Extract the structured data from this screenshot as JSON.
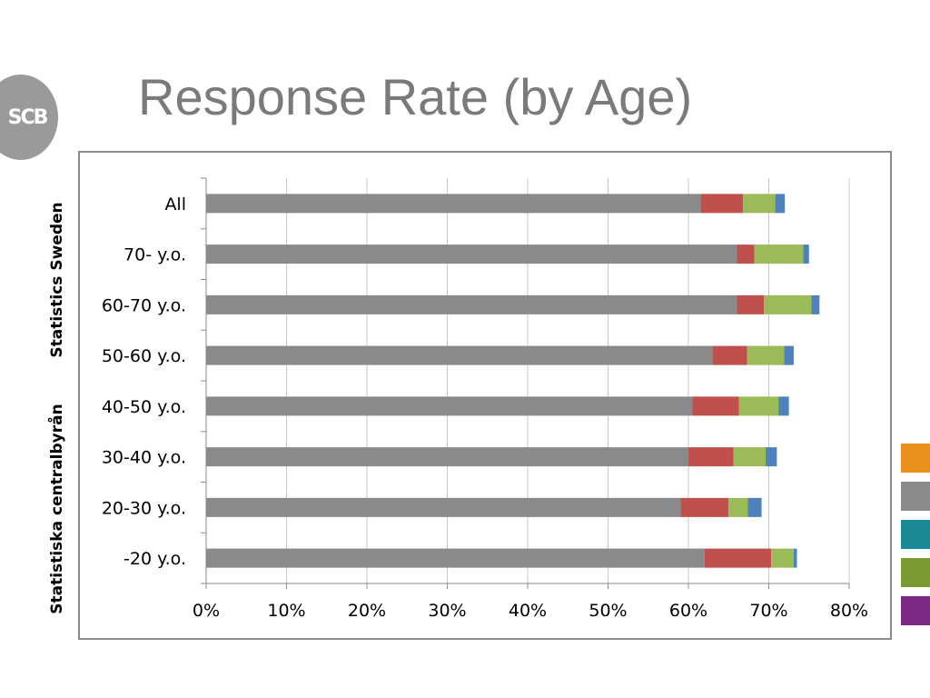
{
  "logo": {
    "text": "SCB",
    "color": "#9a9a9a"
  },
  "title": "Response Rate (by Age)",
  "side_text": {
    "top": "Statistics Sweden",
    "bottom": "Statistiska centralbyrån"
  },
  "legend_swatches": [
    "#e8901a",
    "#8a8a8a",
    "#1a8a96",
    "#7a9a32",
    "#7a2a82"
  ],
  "colors": {
    "series1": "#8a8a8a",
    "series2": "#c0504d",
    "series3": "#9bbb59",
    "series4": "#4f81bd",
    "grid": "#c8c8c8",
    "axis": "#8a8a8a"
  },
  "chart_data": {
    "type": "bar",
    "orientation": "horizontal",
    "stacked": true,
    "categories": [
      "All",
      "70- y.o.",
      "60-70 y.o.",
      "50-60 y.o.",
      "40-50 y.o.",
      "30-40 y.o.",
      "20-30 y.o.",
      "-20 y.o."
    ],
    "series": [
      {
        "values": [
          61.5,
          66.0,
          66.0,
          63.0,
          60.5,
          60.0,
          59.0,
          62.0
        ]
      },
      {
        "values": [
          5.3,
          2.2,
          3.4,
          4.3,
          5.8,
          5.6,
          6.0,
          8.3
        ]
      },
      {
        "values": [
          4.0,
          6.1,
          5.9,
          4.6,
          4.9,
          4.0,
          2.4,
          2.8
        ]
      },
      {
        "values": [
          1.2,
          0.7,
          1.0,
          1.2,
          1.3,
          1.4,
          1.7,
          0.4
        ]
      }
    ],
    "xlim": [
      0,
      80
    ],
    "xticks": [
      "0%",
      "10%",
      "20%",
      "30%",
      "40%",
      "50%",
      "60%",
      "70%",
      "80%"
    ],
    "grid": true,
    "title": "",
    "xlabel": "",
    "ylabel": ""
  }
}
